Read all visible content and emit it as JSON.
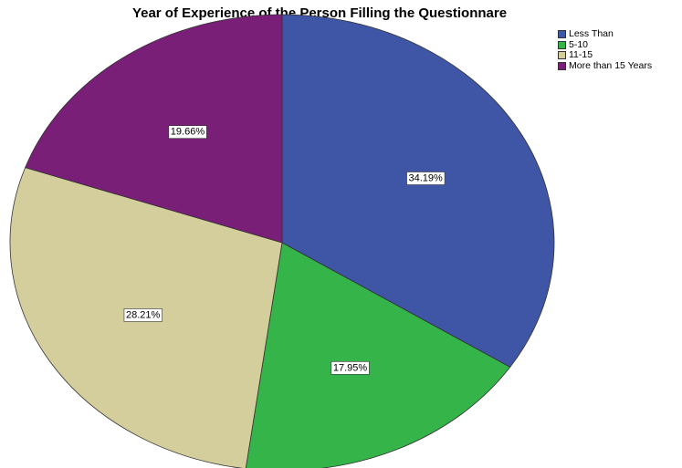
{
  "chart_data": {
    "type": "pie",
    "title": "Year of Experience of the Person Filling the Questionnare",
    "legend_position": "top-right",
    "series": [
      {
        "name": "Less Than",
        "value": 34.19,
        "label": "34.19%",
        "color": "#3f55a6"
      },
      {
        "name": "5-10",
        "value": 17.95,
        "label": "17.95%",
        "color": "#35b44a"
      },
      {
        "name": "11-15",
        "value": 28.21,
        "label": "28.21%",
        "color": "#d4cd9c"
      },
      {
        "name": "More than 15 Years",
        "value": 19.66,
        "label": "19.66%",
        "color": "#7a1f78"
      }
    ]
  }
}
